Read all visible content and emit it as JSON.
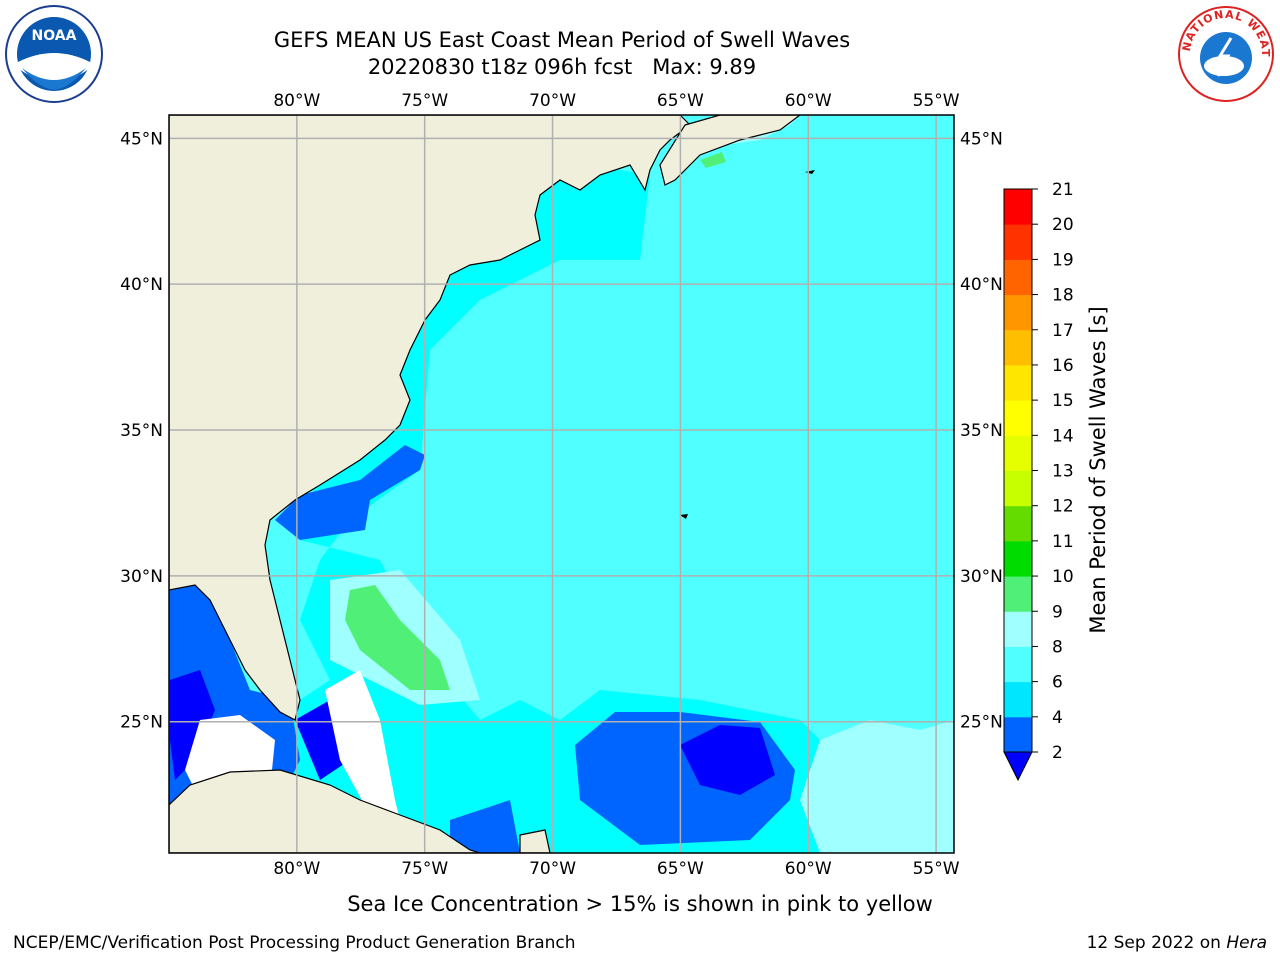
{
  "title": {
    "line1": "GEFS MEAN US East Coast Mean Period of Swell Waves",
    "line2": "20220830 t18z 096h fcst   Max: 9.89"
  },
  "logos": {
    "left": "NOAA",
    "right": "NATIONAL WEATHER SERVICE"
  },
  "map": {
    "lon_ticks": [
      "80°W",
      "75°W",
      "70°W",
      "65°W",
      "60°W",
      "55°W"
    ],
    "lat_ticks": [
      "45°N",
      "40°N",
      "35°N",
      "30°N",
      "25°N"
    ],
    "lon_values": [
      -80,
      -75,
      -70,
      -65,
      -60,
      -55
    ],
    "lat_values": [
      45,
      40,
      35,
      30,
      25
    ],
    "extent": {
      "lon_min": -85,
      "lon_max": -54.3,
      "lat_min": 20.5,
      "lat_max": 45.8
    },
    "colors": {
      "land": "#efefdc",
      "coast": "#000000",
      "grid": "#b0b0b0",
      "no_data": "#ffffff"
    }
  },
  "colorbar": {
    "label": "Mean Period of Swell Waves [s]",
    "ticks": [
      "2",
      "4",
      "6",
      "8",
      "9",
      "10",
      "11",
      "12",
      "13",
      "14",
      "15",
      "16",
      "17",
      "18",
      "19",
      "20",
      "21"
    ],
    "colors": [
      "#0064ff",
      "#00e6ff",
      "#50ffff",
      "#a0ffff",
      "#50f078",
      "#00dc00",
      "#64dc00",
      "#c8ff00",
      "#e6ff00",
      "#ffff00",
      "#ffe600",
      "#ffbe00",
      "#ff9600",
      "#ff6400",
      "#ff3200",
      "#ff0000"
    ],
    "under_color": "#0000ff"
  },
  "note": "Sea Ice Concentration > 15% is shown in pink to yellow",
  "footer": {
    "left": "NCEP/EMC/Verification Post Processing Product Generation Branch",
    "right_date": "12 Sep 2022 on ",
    "right_host": "Hera"
  }
}
